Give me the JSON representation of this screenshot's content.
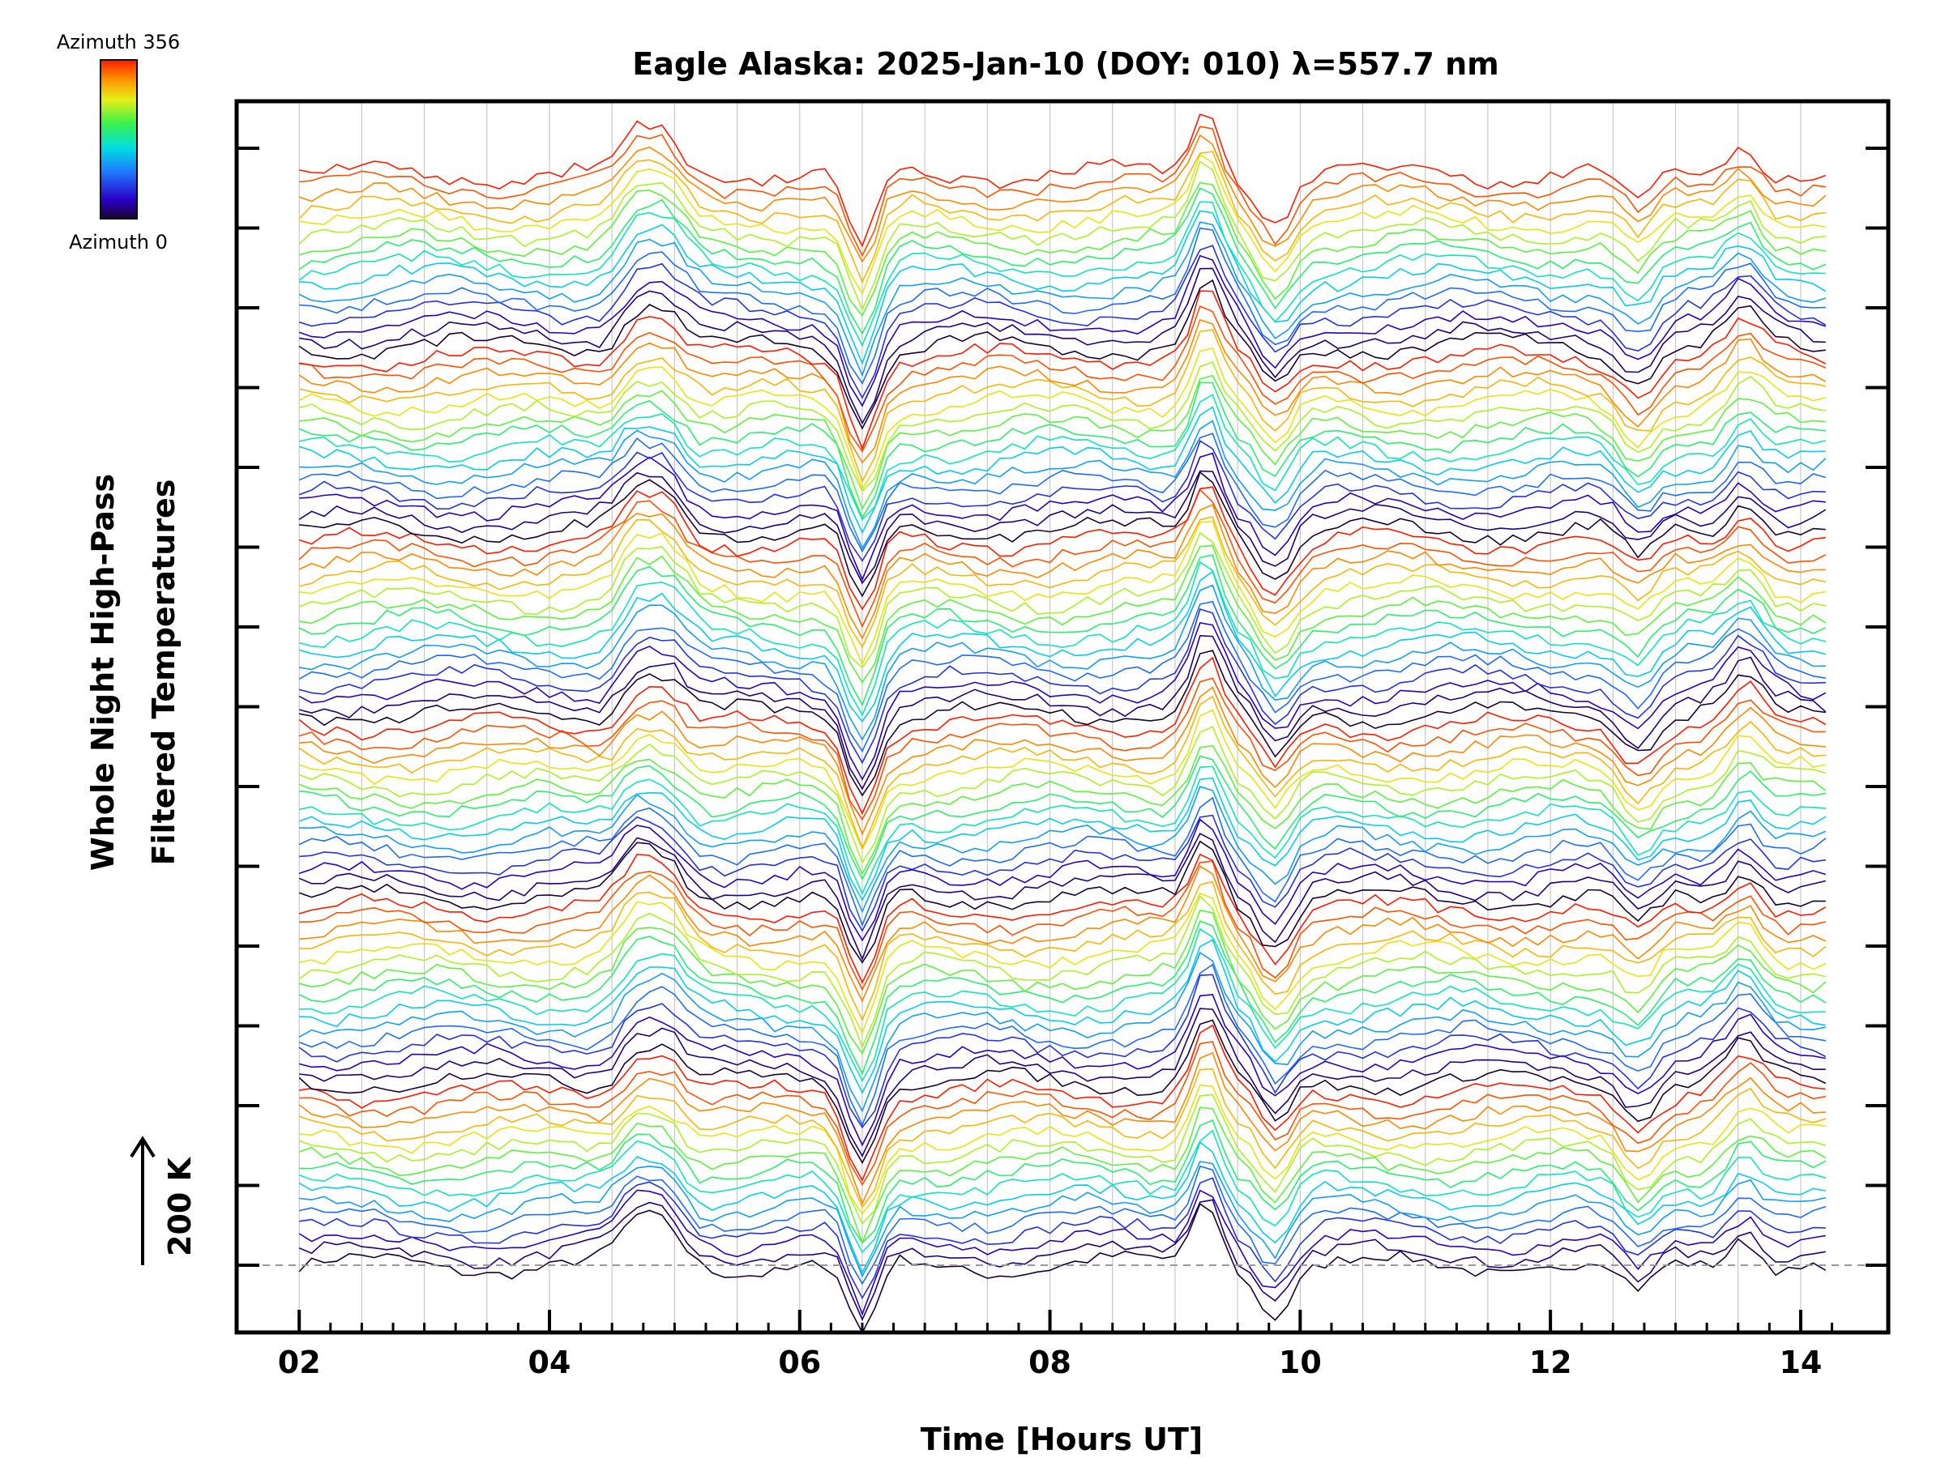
{
  "chart_data": {
    "type": "line",
    "title": "Eagle Alaska: 2025-Jan-10 (DOY: 010) λ=557.7 nm",
    "xlabel": "Time [Hours UT]",
    "ylabel_line1": "Whole Night High-Pass",
    "ylabel_line2": "Filtered Temperatures",
    "scale_label": "200 K",
    "xlim": [
      1.5,
      14.7
    ],
    "x_ticks": [
      "02",
      "04",
      "06",
      "08",
      "10",
      "12",
      "14"
    ],
    "x_tick_values": [
      2,
      4,
      6,
      8,
      10,
      12,
      14
    ],
    "y_tick_count": 15,
    "colorbar": {
      "top_label": "Azimuth 356",
      "bottom_label": "Azimuth 0",
      "min": 0,
      "max": 356,
      "colormap": "rainbow"
    },
    "stacked_profiles": {
      "description_source": "approximate, read from figure",
      "start_hour": 2.0,
      "end_hour": 14.2,
      "profile_groups": 6,
      "azimuth_steps_per_group": 16,
      "baseline_dashed": true,
      "features": [
        {
          "hour": 4.7,
          "amplitude": 45
        },
        {
          "hour": 4.95,
          "amplitude": 40
        },
        {
          "hour": 6.5,
          "amplitude": -95
        },
        {
          "hour": 9.25,
          "amplitude": 80
        },
        {
          "hour": 9.8,
          "amplitude": -55
        },
        {
          "hour": 12.7,
          "amplitude": -40
        },
        {
          "hour": 13.55,
          "amplitude": 40
        }
      ]
    }
  },
  "colors": {
    "frame": "#000000",
    "grid": "#c8c8c8",
    "baseline": "#9a9a9a"
  }
}
